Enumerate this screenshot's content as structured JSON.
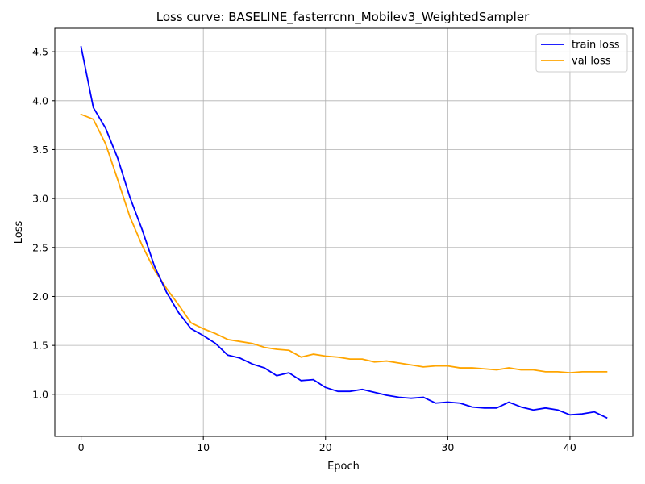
{
  "chart_data": {
    "type": "line",
    "title": "Loss curve: BASELINE_fasterrcnn_Mobilev3_WeightedSampler",
    "xlabel": "Epoch",
    "ylabel": "Loss",
    "xlim": [
      -2.15,
      45.15
    ],
    "ylim": [
      0.57,
      4.74
    ],
    "xticks": [
      0,
      10,
      20,
      30,
      40
    ],
    "yticks": [
      1.0,
      1.5,
      2.0,
      2.5,
      3.0,
      3.5,
      4.0,
      4.5
    ],
    "xtick_labels": [
      "0",
      "10",
      "20",
      "30",
      "40"
    ],
    "ytick_labels": [
      "1.0",
      "1.5",
      "2.0",
      "2.5",
      "3.0",
      "3.5",
      "4.0",
      "4.5"
    ],
    "grid": true,
    "legend_position": "top-right",
    "x": [
      0,
      1,
      2,
      3,
      4,
      5,
      6,
      7,
      8,
      9,
      10,
      11,
      12,
      13,
      14,
      15,
      16,
      17,
      18,
      19,
      20,
      21,
      22,
      23,
      24,
      25,
      26,
      27,
      28,
      29,
      30,
      31,
      32,
      33,
      34,
      35,
      36,
      37,
      38,
      39,
      40,
      41,
      42,
      43
    ],
    "series": [
      {
        "name": "train loss",
        "color": "#0000ff",
        "values": [
          4.55,
          3.93,
          3.72,
          3.41,
          3.01,
          2.68,
          2.31,
          2.04,
          1.83,
          1.67,
          1.6,
          1.52,
          1.4,
          1.37,
          1.31,
          1.27,
          1.19,
          1.22,
          1.14,
          1.15,
          1.07,
          1.03,
          1.03,
          1.05,
          1.02,
          0.99,
          0.97,
          0.96,
          0.97,
          0.91,
          0.92,
          0.91,
          0.87,
          0.86,
          0.86,
          0.92,
          0.87,
          0.84,
          0.86,
          0.84,
          0.79,
          0.8,
          0.82,
          0.76
        ]
      },
      {
        "name": "val loss",
        "color": "#ffa500",
        "values": [
          3.86,
          3.81,
          3.56,
          3.19,
          2.81,
          2.52,
          2.27,
          2.08,
          1.91,
          1.73,
          1.67,
          1.62,
          1.56,
          1.54,
          1.52,
          1.48,
          1.46,
          1.45,
          1.38,
          1.41,
          1.39,
          1.38,
          1.36,
          1.36,
          1.33,
          1.34,
          1.32,
          1.3,
          1.28,
          1.29,
          1.29,
          1.27,
          1.27,
          1.26,
          1.25,
          1.27,
          1.25,
          1.25,
          1.23,
          1.23,
          1.22,
          1.23,
          1.23,
          1.23
        ]
      }
    ]
  }
}
